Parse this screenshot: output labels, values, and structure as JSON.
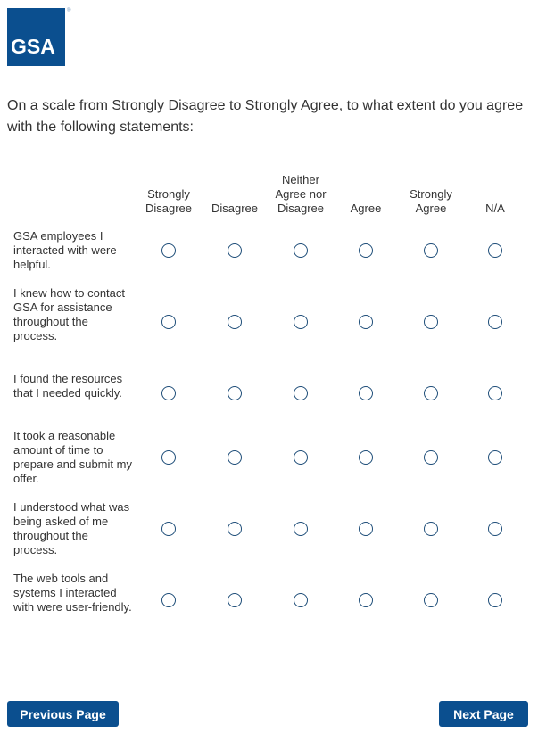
{
  "logo": {
    "text": "GSA",
    "registered": "®"
  },
  "question": "On a scale from Strongly Disagree to Strongly Agree, to what extent do you agree with the following statements:",
  "columns": [
    "Strongly Disagree",
    "Disagree",
    "Neither Agree nor Disagree",
    "Agree",
    "Strongly Agree",
    "N/A"
  ],
  "statements": [
    "GSA employees I interacted with were helpful.",
    "I knew how to contact GSA for assistance throughout the process.",
    "I found the resources that I needed quickly.",
    "It took a reasonable amount of time to prepare and submit my offer.",
    "I understood what was being asked of me throughout the process.",
    "The web tools and systems I interacted with were user-friendly."
  ],
  "buttons": {
    "previous": "Previous Page",
    "next": "Next Page"
  },
  "colors": {
    "brand": "#0b4f8f",
    "radio_border": "#1f4e79"
  }
}
